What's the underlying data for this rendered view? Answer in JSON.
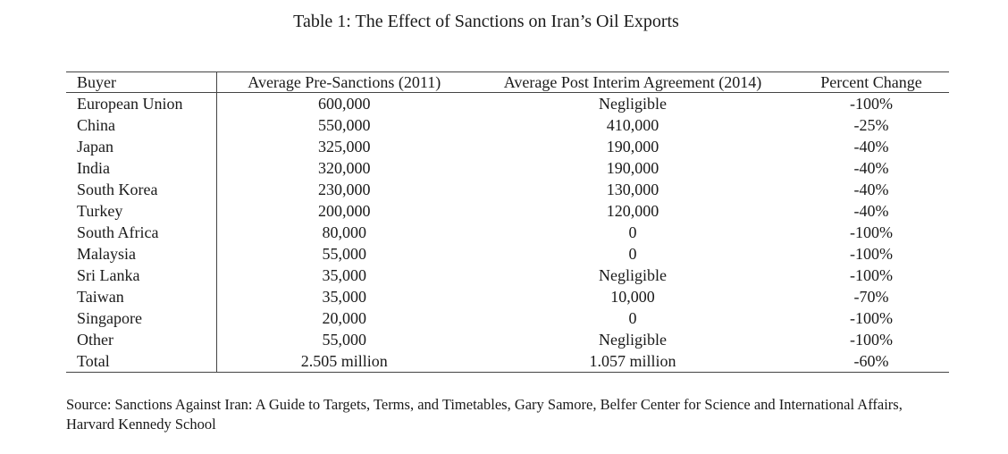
{
  "caption": "Table 1: The Effect of Sanctions on Iran’s Oil Exports",
  "table": {
    "headers": [
      "Buyer",
      "Average Pre-Sanctions (2011)",
      "Average Post Interim Agreement (2014)",
      "Percent Change"
    ],
    "rows": [
      [
        "European Union",
        "600,000",
        "Negligible",
        "-100%"
      ],
      [
        "China",
        "550,000",
        "410,000",
        "-25%"
      ],
      [
        "Japan",
        "325,000",
        "190,000",
        "-40%"
      ],
      [
        "India",
        "320,000",
        "190,000",
        "-40%"
      ],
      [
        "South Korea",
        "230,000",
        "130,000",
        "-40%"
      ],
      [
        "Turkey",
        "200,000",
        "120,000",
        "-40%"
      ],
      [
        "South Africa",
        "80,000",
        "0",
        "-100%"
      ],
      [
        "Malaysia",
        "55,000",
        "0",
        "-100%"
      ],
      [
        "Sri Lanka",
        "35,000",
        "Negligible",
        "-100%"
      ],
      [
        "Taiwan",
        "35,000",
        "10,000",
        "-70%"
      ],
      [
        "Singapore",
        "20,000",
        "0",
        "-100%"
      ],
      [
        "Other",
        "55,000",
        "Negligible",
        "-100%"
      ],
      [
        "Total",
        "2.505 million",
        "1.057 million",
        "-60%"
      ]
    ]
  },
  "source": "Source: Sanctions Against Iran: A Guide to Targets, Terms, and Timetables, Gary Samore, Belfer Center for Science and International Affairs, Harvard Kennedy School"
}
